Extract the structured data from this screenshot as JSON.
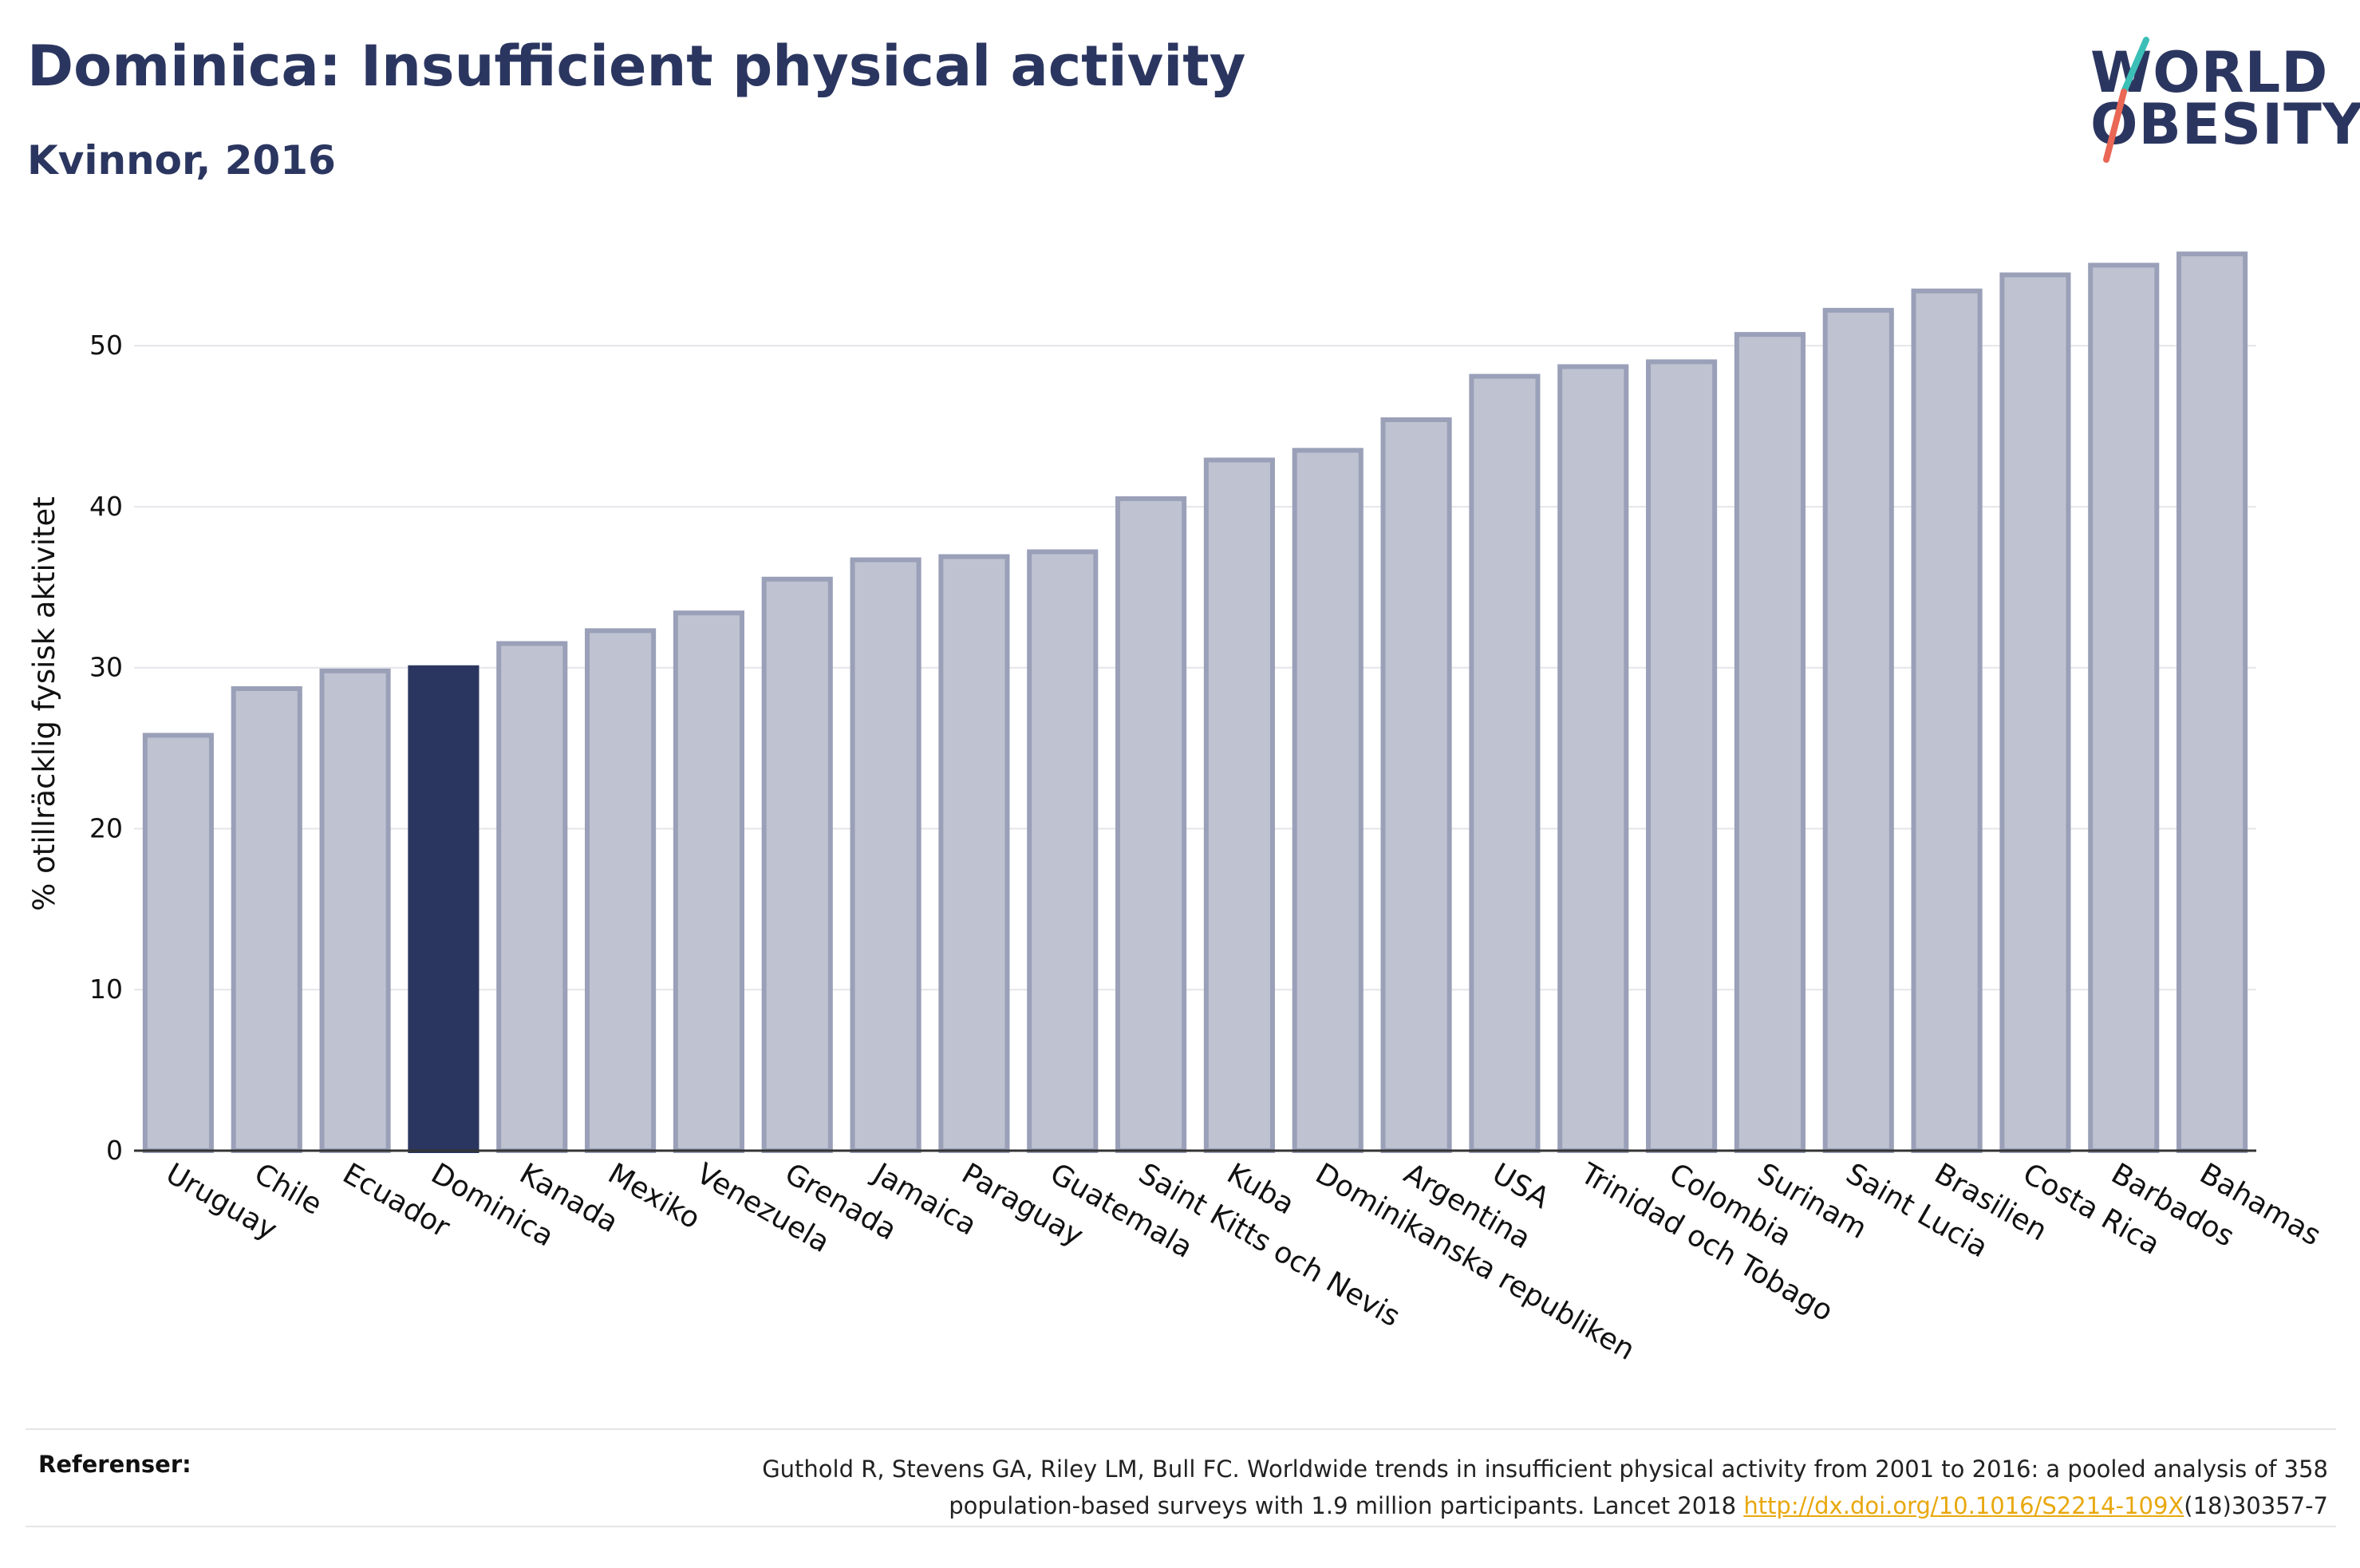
{
  "header": {
    "title": "Dominica: Insufficient physical activity",
    "subtitle": "Kvinnor, 2016"
  },
  "logo": {
    "line1": "WORLD",
    "line2": "OBESITY"
  },
  "colors": {
    "highlight": "#2b3660",
    "bar_fill": "#bfc3d1",
    "bar_stroke": "#9aa0b8",
    "axis_text": "#111111",
    "grid": "#e6e6ea",
    "logo_teal": "#3bbfb6",
    "logo_red": "#ea6655"
  },
  "chart_data": {
    "type": "bar",
    "ylabel": "% otillräcklig fysisk aktivitet",
    "xlabel": "",
    "ylim": [
      0,
      57
    ],
    "yticks": [
      0,
      10,
      20,
      30,
      40,
      50
    ],
    "grid": true,
    "highlight_category": "Dominica",
    "categories": [
      "Uruguay",
      "Chile",
      "Ecuador",
      "Dominica",
      "Kanada",
      "Mexiko",
      "Venezuela",
      "Grenada",
      "Jamaica",
      "Paraguay",
      "Guatemala",
      "Saint Kitts och Nevis",
      "Kuba",
      "Dominikanska republiken",
      "Argentina",
      "USA",
      "Trinidad och Tobago",
      "Colombia",
      "Surinam",
      "Saint Lucia",
      "Brasilien",
      "Costa Rica",
      "Barbados",
      "Bahamas"
    ],
    "values": [
      25.8,
      28.7,
      29.8,
      30.0,
      31.5,
      32.3,
      33.4,
      35.5,
      36.7,
      36.9,
      37.2,
      40.5,
      42.9,
      43.5,
      45.4,
      48.1,
      48.7,
      49.0,
      50.7,
      52.2,
      53.4,
      54.4,
      55.0,
      55.7
    ]
  },
  "references": {
    "label": "Referenser:",
    "line1": "Guthold R, Stevens GA, Riley LM, Bull FC. Worldwide trends in insufficient physical activity from 2001 to 2016: a pooled analysis of 358",
    "line2_pre": "population-based surveys with 1.9 million participants. Lancet 2018 ",
    "link": "http://dx.doi.org/10.1016/S2214-109X",
    "line2_post": "(18)30357-7"
  }
}
